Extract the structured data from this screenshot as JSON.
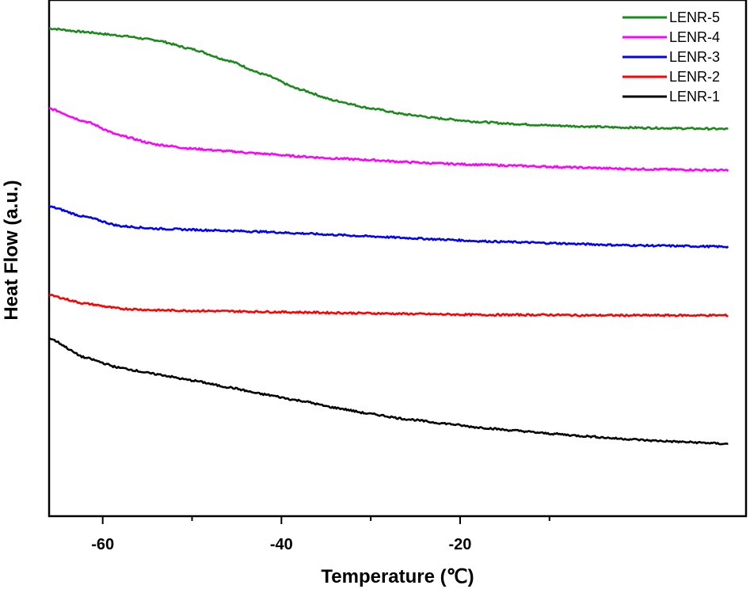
{
  "chart_data": {
    "type": "line",
    "title": "",
    "xlabel": "Temperature (℃)",
    "ylabel": "Heat Flow (a.u.)",
    "xlim": [
      -66,
      12
    ],
    "ylim": [
      0,
      10
    ],
    "xticks": [
      -60,
      -40,
      -20
    ],
    "xticks_minor": [
      -50,
      -30,
      -10
    ],
    "grid": false,
    "legend_position": "top-right",
    "series": [
      {
        "name": "LENR-5",
        "color": "#1a8a1a",
        "x": [
          -66,
          -62,
          -58,
          -54,
          -50,
          -46,
          -42,
          -38,
          -34,
          -30,
          -26,
          -22,
          -18,
          -14,
          -10,
          -6,
          -2,
          2,
          6,
          10
        ],
        "y": [
          9.45,
          9.38,
          9.31,
          9.22,
          9.05,
          8.83,
          8.56,
          8.27,
          8.05,
          7.9,
          7.78,
          7.7,
          7.64,
          7.6,
          7.57,
          7.55,
          7.53,
          7.52,
          7.51,
          7.5
        ]
      },
      {
        "name": "LENR-4",
        "color": "#ff00ff",
        "x": [
          -66,
          -62,
          -58,
          -54,
          -50,
          -46,
          -42,
          -38,
          -34,
          -30,
          -26,
          -22,
          -18,
          -14,
          -10,
          -6,
          -2,
          2,
          6,
          10
        ],
        "y": [
          7.9,
          7.65,
          7.37,
          7.2,
          7.12,
          7.07,
          7.02,
          6.97,
          6.93,
          6.9,
          6.86,
          6.83,
          6.81,
          6.79,
          6.77,
          6.75,
          6.73,
          6.72,
          6.71,
          6.7
        ]
      },
      {
        "name": "LENR-3",
        "color": "#0000ff",
        "x": [
          -66,
          -62,
          -58,
          -54,
          -50,
          -46,
          -42,
          -38,
          -34,
          -30,
          -26,
          -22,
          -18,
          -14,
          -10,
          -6,
          -2,
          2,
          6,
          10
        ],
        "y": [
          6.0,
          5.8,
          5.62,
          5.57,
          5.55,
          5.53,
          5.51,
          5.48,
          5.45,
          5.42,
          5.39,
          5.36,
          5.33,
          5.31,
          5.29,
          5.27,
          5.25,
          5.24,
          5.23,
          5.22
        ]
      },
      {
        "name": "LENR-2",
        "color": "#ff0000",
        "x": [
          -66,
          -62,
          -58,
          -54,
          -50,
          -46,
          -42,
          -38,
          -34,
          -30,
          -26,
          -22,
          -18,
          -14,
          -10,
          -6,
          -2,
          2,
          6,
          10
        ],
        "y": [
          4.28,
          4.12,
          4.02,
          3.99,
          3.98,
          3.97,
          3.96,
          3.95,
          3.94,
          3.93,
          3.92,
          3.91,
          3.9,
          3.9,
          3.9,
          3.89,
          3.89,
          3.89,
          3.89,
          3.89
        ]
      },
      {
        "name": "LENR-1",
        "color": "#000000",
        "x": [
          -66,
          -62,
          -58,
          -54,
          -50,
          -46,
          -42,
          -38,
          -34,
          -30,
          -26,
          -22,
          -18,
          -14,
          -10,
          -6,
          -2,
          2,
          6,
          10
        ],
        "y": [
          3.45,
          3.07,
          2.87,
          2.75,
          2.63,
          2.5,
          2.36,
          2.24,
          2.1,
          1.98,
          1.88,
          1.8,
          1.72,
          1.66,
          1.6,
          1.55,
          1.5,
          1.46,
          1.43,
          1.4
        ]
      }
    ]
  }
}
